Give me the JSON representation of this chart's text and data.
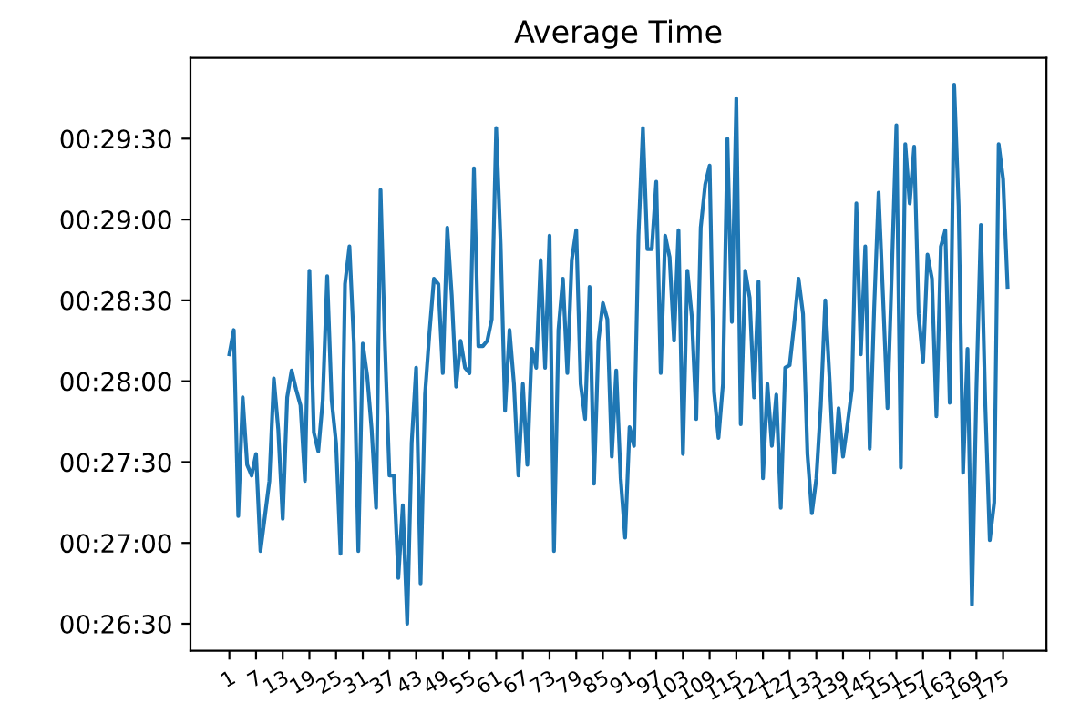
{
  "chart_data": {
    "type": "line",
    "title": "Average Time",
    "categories": [
      "1",
      null,
      null,
      null,
      null,
      null,
      "7",
      null,
      null,
      null,
      null,
      null,
      "13",
      null,
      null,
      null,
      null,
      null,
      "19",
      null,
      null,
      null,
      null,
      null,
      "25",
      null,
      null,
      null,
      null,
      null,
      "31",
      null,
      null,
      null,
      null,
      null,
      "37",
      null,
      null,
      null,
      null,
      null,
      "43",
      null,
      null,
      null,
      null,
      null,
      "49",
      null,
      null,
      null,
      null,
      null,
      "55",
      null,
      null,
      null,
      null,
      null,
      "61",
      null,
      null,
      null,
      null,
      null,
      "67",
      null,
      null,
      null,
      null,
      null,
      "73",
      null,
      null,
      null,
      null,
      null,
      "79",
      null,
      null,
      null,
      null,
      null,
      "85",
      null,
      null,
      null,
      null,
      null,
      "91",
      null,
      null,
      null,
      null,
      null,
      "97",
      null,
      null,
      null,
      null,
      null,
      "103",
      null,
      null,
      null,
      null,
      null,
      "109",
      null,
      null,
      null,
      null,
      null,
      "115",
      null,
      null,
      null,
      null,
      null,
      "121",
      null,
      null,
      null,
      null,
      null,
      "127",
      null,
      null,
      null,
      null,
      null,
      "133",
      null,
      null,
      null,
      null,
      null,
      "139",
      null,
      null,
      null,
      null,
      null,
      "145",
      null,
      null,
      null,
      null,
      null,
      "151",
      null,
      null,
      null,
      null,
      null,
      "157",
      null,
      null,
      null,
      null,
      null,
      "163",
      null,
      null,
      null,
      null,
      null,
      "169",
      null,
      null,
      null,
      null,
      null,
      "175",
      null
    ],
    "series": [
      {
        "color": "#1f77b4",
        "values": [
          1690,
          1699,
          1630,
          1674,
          1649,
          1645,
          1653,
          1617,
          1630,
          1643,
          1681,
          1662,
          1629,
          1674,
          1684,
          1677,
          1671,
          1643,
          1721,
          1661,
          1654,
          1673,
          1719,
          1673,
          1657,
          1616,
          1716,
          1730,
          1694,
          1617,
          1694,
          1682,
          1662,
          1633,
          1751,
          1693,
          1645,
          1645,
          1607,
          1634,
          1590,
          1657,
          1685,
          1605,
          1675,
          1698,
          1718,
          1716,
          1683,
          1737,
          1712,
          1678,
          1695,
          1685,
          1683,
          1759,
          1693,
          1693,
          1695,
          1703,
          1774,
          1731,
          1669,
          1699,
          1679,
          1645,
          1679,
          1649,
          1692,
          1685,
          1725,
          1685,
          1734,
          1617,
          1699,
          1718,
          1683,
          1725,
          1736,
          1679,
          1666,
          1715,
          1642,
          1695,
          1709,
          1703,
          1652,
          1684,
          1644,
          1622,
          1663,
          1656,
          1734,
          1774,
          1729,
          1729,
          1754,
          1683,
          1734,
          1726,
          1695,
          1736,
          1653,
          1721,
          1704,
          1666,
          1737,
          1753,
          1760,
          1676,
          1659,
          1679,
          1770,
          1702,
          1785,
          1664,
          1721,
          1711,
          1674,
          1717,
          1644,
          1679,
          1656,
          1675,
          1633,
          1685,
          1686,
          1701,
          1718,
          1705,
          1653,
          1631,
          1644,
          1671,
          1710,
          1680,
          1646,
          1670,
          1652,
          1664,
          1677,
          1746,
          1690,
          1730,
          1655,
          1707,
          1750,
          1711,
          1670,
          1722,
          1775,
          1648,
          1768,
          1746,
          1767,
          1705,
          1687,
          1727,
          1718,
          1667,
          1730,
          1736,
          1672,
          1790,
          1745,
          1646,
          1692,
          1597,
          1677,
          1738,
          1671,
          1621,
          1635,
          1768,
          1755,
          1715
        ]
      }
    ],
    "ylim": [
      1580,
      1800
    ],
    "yticks": [
      {
        "value": 1590,
        "label": "00:26:30"
      },
      {
        "value": 1620,
        "label": "00:27:00"
      },
      {
        "value": 1650,
        "label": "00:27:30"
      },
      {
        "value": 1680,
        "label": "00:28:00"
      },
      {
        "value": 1710,
        "label": "00:28:30"
      },
      {
        "value": 1740,
        "label": "00:29:00"
      },
      {
        "value": 1770,
        "label": "00:29:30"
      }
    ],
    "line_style": "solid",
    "marker": "none",
    "grid": false
  }
}
